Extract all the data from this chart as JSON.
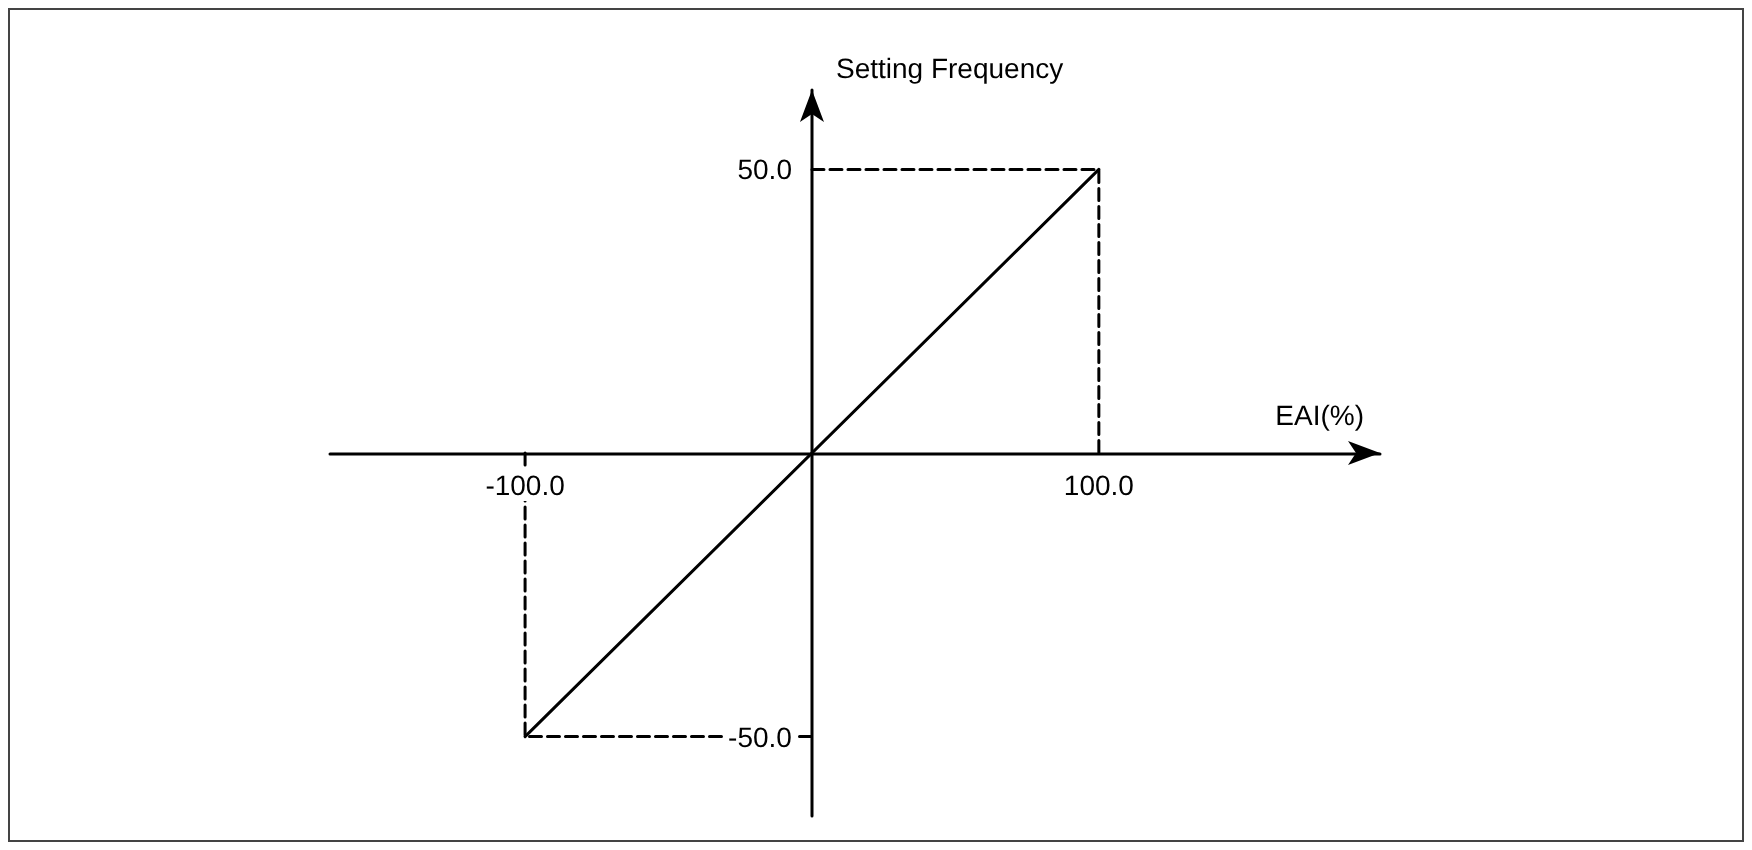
{
  "chart_data": {
    "type": "line",
    "xlabel": "EAI(%)",
    "ylabel": "Setting Frequency",
    "xlim": [
      -168,
      198
    ],
    "ylim": [
      -64,
      64
    ],
    "xticks": [
      {
        "value": -100,
        "label": "-100.0"
      },
      {
        "value": 100,
        "label": "100.0"
      }
    ],
    "yticks": [
      {
        "value": -50,
        "label": "-50.0"
      },
      {
        "value": 50,
        "label": "50.0"
      }
    ],
    "marker": "none",
    "series": [
      {
        "x": [
          -100,
          100
        ],
        "values": [
          -50,
          50
        ],
        "color": "#000000",
        "line_style": "solid"
      },
      {
        "x": [
          -100,
          -100,
          0
        ],
        "values": [
          0,
          -50,
          -50
        ],
        "color": "#000000",
        "line_style": "dashed"
      },
      {
        "x": [
          0,
          100,
          100
        ],
        "values": [
          50,
          50,
          0
        ],
        "color": "#000000",
        "line_style": "dashed"
      }
    ]
  }
}
